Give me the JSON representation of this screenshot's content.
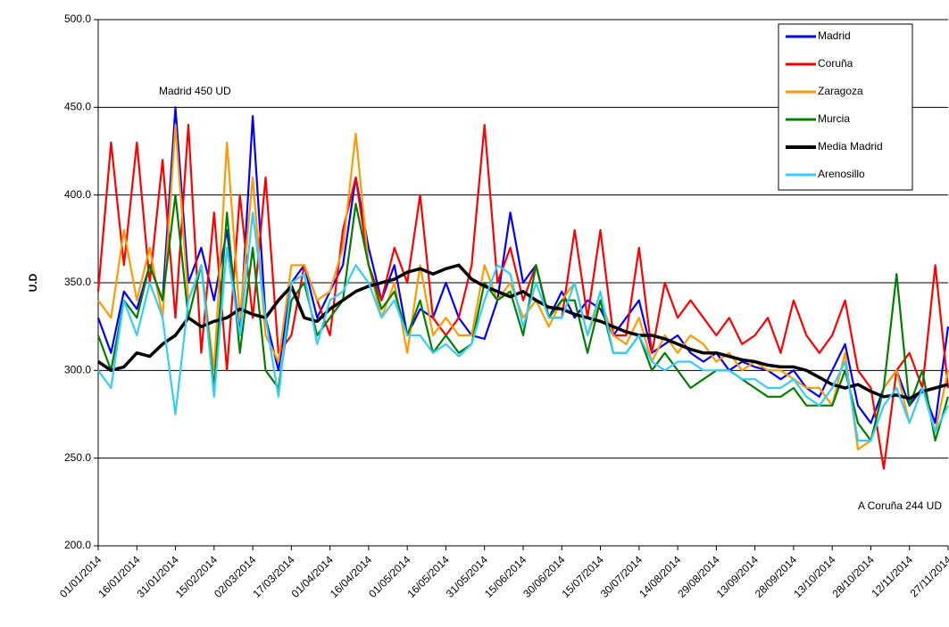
{
  "chart_data": {
    "type": "line",
    "y_label": "U.D",
    "annotations": [
      "Madrid 450 UD",
      "A Coruña 244 UD"
    ],
    "categories": [
      "01/01/2014",
      null,
      null,
      "16/01/2014",
      null,
      null,
      "31/01/2014",
      null,
      null,
      "15/02/2014",
      null,
      null,
      "02/03/2014",
      null,
      null,
      "17/03/2014",
      null,
      null,
      "01/04/2014",
      null,
      null,
      "16/04/2014",
      null,
      null,
      "01/05/2014",
      null,
      null,
      "16/05/2014",
      null,
      null,
      "31/05/2014",
      null,
      null,
      "15/06/2014",
      null,
      null,
      "30/06/2014",
      null,
      null,
      "15/07/2014",
      null,
      null,
      "30/07/2014",
      null,
      null,
      "14/08/2014",
      null,
      null,
      "29/08/2014",
      null,
      null,
      "13/09/2014",
      null,
      null,
      "28/09/2014",
      null,
      null,
      "13/10/2014",
      null,
      null,
      "28/10/2014",
      null,
      null,
      "12/11/2014",
      null,
      null,
      "27/11/2014"
    ],
    "ylim": [
      200,
      500
    ],
    "yticks": [
      {
        "value": 200,
        "label": "200.0"
      },
      {
        "value": 250,
        "label": "250.0"
      },
      {
        "value": 300,
        "label": "300.0"
      },
      {
        "value": 350,
        "label": "350.0"
      },
      {
        "value": 400,
        "label": "400.0"
      },
      {
        "value": 450,
        "label": "450.0"
      },
      {
        "value": 500,
        "label": "500.0"
      }
    ],
    "grid": true,
    "legend": "top-right",
    "series": [
      {
        "name": "Madrid",
        "color": "#0000ff",
        "values": [
          330,
          310,
          345,
          335,
          360,
          340,
          450,
          350,
          370,
          340,
          380,
          320,
          445,
          330,
          300,
          350,
          360,
          330,
          345,
          360,
          410,
          370,
          340,
          360,
          320,
          335,
          330,
          350,
          330,
          320,
          318,
          340,
          390,
          350,
          360,
          330,
          345,
          330,
          340,
          335,
          320,
          330,
          340,
          310,
          315,
          320,
          310,
          305,
          310,
          300,
          305,
          302,
          300,
          295,
          300,
          290,
          285,
          300,
          315,
          280,
          270,
          290,
          300,
          280,
          290,
          270,
          325
        ]
      },
      {
        "name": "Coruña",
        "color": "#ff0000",
        "values": [
          345,
          430,
          360,
          430,
          350,
          420,
          330,
          440,
          310,
          390,
          300,
          400,
          330,
          410,
          310,
          320,
          360,
          340,
          320,
          380,
          410,
          360,
          340,
          370,
          350,
          400,
          330,
          320,
          330,
          360,
          440,
          350,
          370,
          340,
          360,
          330,
          330,
          380,
          330,
          380,
          320,
          320,
          370,
          310,
          350,
          330,
          340,
          330,
          320,
          330,
          315,
          320,
          330,
          310,
          340,
          320,
          310,
          320,
          340,
          300,
          290,
          244,
          300,
          310,
          290,
          360,
          290
        ]
      },
      {
        "name": "Zaragoza",
        "color": "#ff9900",
        "values": [
          340,
          330,
          380,
          340,
          370,
          330,
          440,
          340,
          360,
          300,
          430,
          330,
          410,
          320,
          305,
          360,
          360,
          340,
          345,
          370,
          435,
          360,
          330,
          350,
          310,
          360,
          320,
          330,
          320,
          320,
          360,
          340,
          350,
          330,
          340,
          325,
          340,
          350,
          320,
          340,
          320,
          315,
          330,
          305,
          320,
          310,
          320,
          315,
          305,
          310,
          300,
          305,
          300,
          300,
          295,
          290,
          290,
          280,
          310,
          255,
          260,
          290,
          300,
          270,
          290,
          265,
          300
        ]
      },
      {
        "name": "Murcia",
        "color": "#008000",
        "values": [
          320,
          300,
          340,
          330,
          360,
          340,
          400,
          330,
          360,
          290,
          390,
          310,
          370,
          300,
          290,
          340,
          350,
          320,
          330,
          340,
          395,
          360,
          335,
          345,
          320,
          340,
          310,
          320,
          310,
          315,
          350,
          340,
          345,
          320,
          360,
          330,
          340,
          340,
          310,
          340,
          310,
          310,
          320,
          300,
          310,
          300,
          290,
          295,
          300,
          300,
          295,
          290,
          285,
          285,
          290,
          280,
          280,
          280,
          300,
          270,
          260,
          290,
          355,
          280,
          300,
          260,
          285
        ]
      },
      {
        "name": "Media Madrid",
        "color": "#000000",
        "values": [
          305,
          300,
          302,
          310,
          308,
          315,
          320,
          330,
          325,
          328,
          330,
          335,
          332,
          330,
          340,
          348,
          330,
          328,
          335,
          340,
          345,
          348,
          350,
          352,
          356,
          358,
          355,
          358,
          360,
          352,
          348,
          345,
          342,
          345,
          340,
          336,
          335,
          332,
          330,
          328,
          325,
          322,
          320,
          320,
          318,
          315,
          312,
          310,
          310,
          308,
          306,
          305,
          303,
          302,
          302,
          300,
          296,
          292,
          290,
          292,
          288,
          285,
          286,
          284,
          288,
          290,
          292
        ]
      },
      {
        "name": "Arenosillo",
        "color": "#33ccff",
        "values": [
          300,
          290,
          340,
          320,
          350,
          330,
          275,
          340,
          360,
          285,
          370,
          320,
          390,
          330,
          285,
          350,
          355,
          315,
          340,
          345,
          360,
          350,
          330,
          340,
          320,
          320,
          310,
          315,
          308,
          315,
          340,
          360,
          355,
          325,
          350,
          330,
          330,
          350,
          320,
          345,
          310,
          310,
          320,
          305,
          300,
          305,
          305,
          300,
          300,
          300,
          295,
          295,
          290,
          290,
          295,
          285,
          280,
          290,
          305,
          260,
          260,
          280,
          290,
          270,
          290,
          265,
          280
        ]
      }
    ]
  }
}
